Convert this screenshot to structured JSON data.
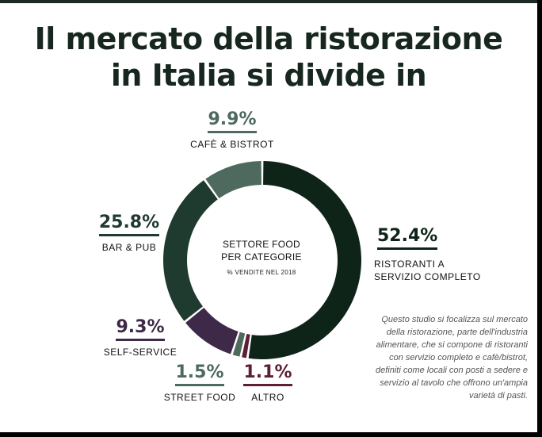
{
  "title": {
    "line1": "Il mercato della ristorazione",
    "line2": "in Italia si divide in"
  },
  "center": {
    "title_line1": "SETTORE FOOD",
    "title_line2": "PER CATEGORIE",
    "subtitle": "% VENDITE NEL 2018"
  },
  "note": "Questo studio si focalizza sul mercato della ristorazione, parte dell'industria alimentare, che si compone di ristoranti con servizio completo e cafè/bistrot, definiti come locali con posti a sedere e servizio al tavolo che offrono un'ampia varietà di pasti.",
  "chart_data": {
    "type": "pie",
    "variant": "donut",
    "unit": "%",
    "slices": [
      {
        "label": "RISTORANTI A SERVIZIO COMPLETO",
        "value": 52.4,
        "value_text": "52.4%",
        "color": "#0f2419"
      },
      {
        "label": "ALTRO",
        "value": 1.1,
        "value_text": "1.1%",
        "color": "#5c1f33"
      },
      {
        "label": "STREET FOOD",
        "value": 1.5,
        "value_text": "1.5%",
        "color": "#4d6a5d"
      },
      {
        "label": "SELF-SERVICE",
        "value": 9.3,
        "value_text": "9.3%",
        "color": "#3e2a48"
      },
      {
        "label": "BAR & PUB",
        "value": 25.8,
        "value_text": "25.8%",
        "color": "#1f3a2e"
      },
      {
        "label": "CAFÈ & BISTROT",
        "value": 9.9,
        "value_text": "9.9%",
        "color": "#4e695e"
      }
    ]
  }
}
